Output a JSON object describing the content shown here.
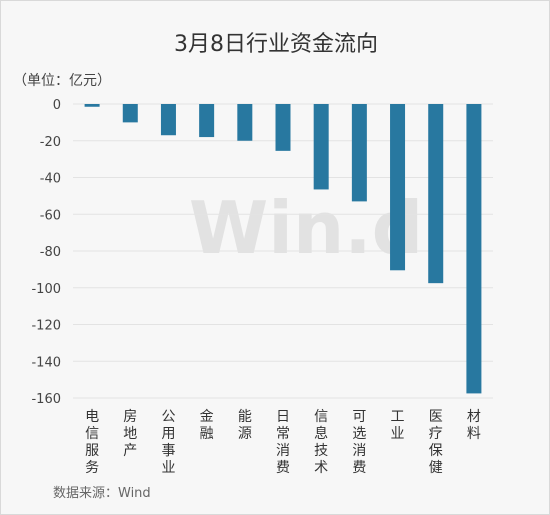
{
  "chart_data": {
    "type": "bar",
    "title": "3月8日行业资金流向",
    "unit_label": "（单位：亿元）",
    "source": "数据来源：Wind",
    "watermark": "Win.d",
    "categories": [
      "电信服务",
      "房地产",
      "公用事业",
      "金融",
      "能源",
      "日常消费",
      "信息技术",
      "可选消费",
      "工业",
      "医疗保健",
      "材料"
    ],
    "values": [
      -1.5,
      -10,
      -17,
      -18,
      -20,
      -25.5,
      -46.5,
      -53,
      -90.5,
      -97.5,
      -157.5
    ],
    "ylim": [
      -160,
      0
    ],
    "yticks": [
      "0",
      "-20",
      "-40",
      "-60",
      "-80",
      "-100",
      "-120",
      "-140",
      "-160"
    ],
    "bar_color": "#2878a0",
    "grid_color": "#e3e3e3",
    "grid": true,
    "legend": "none"
  }
}
